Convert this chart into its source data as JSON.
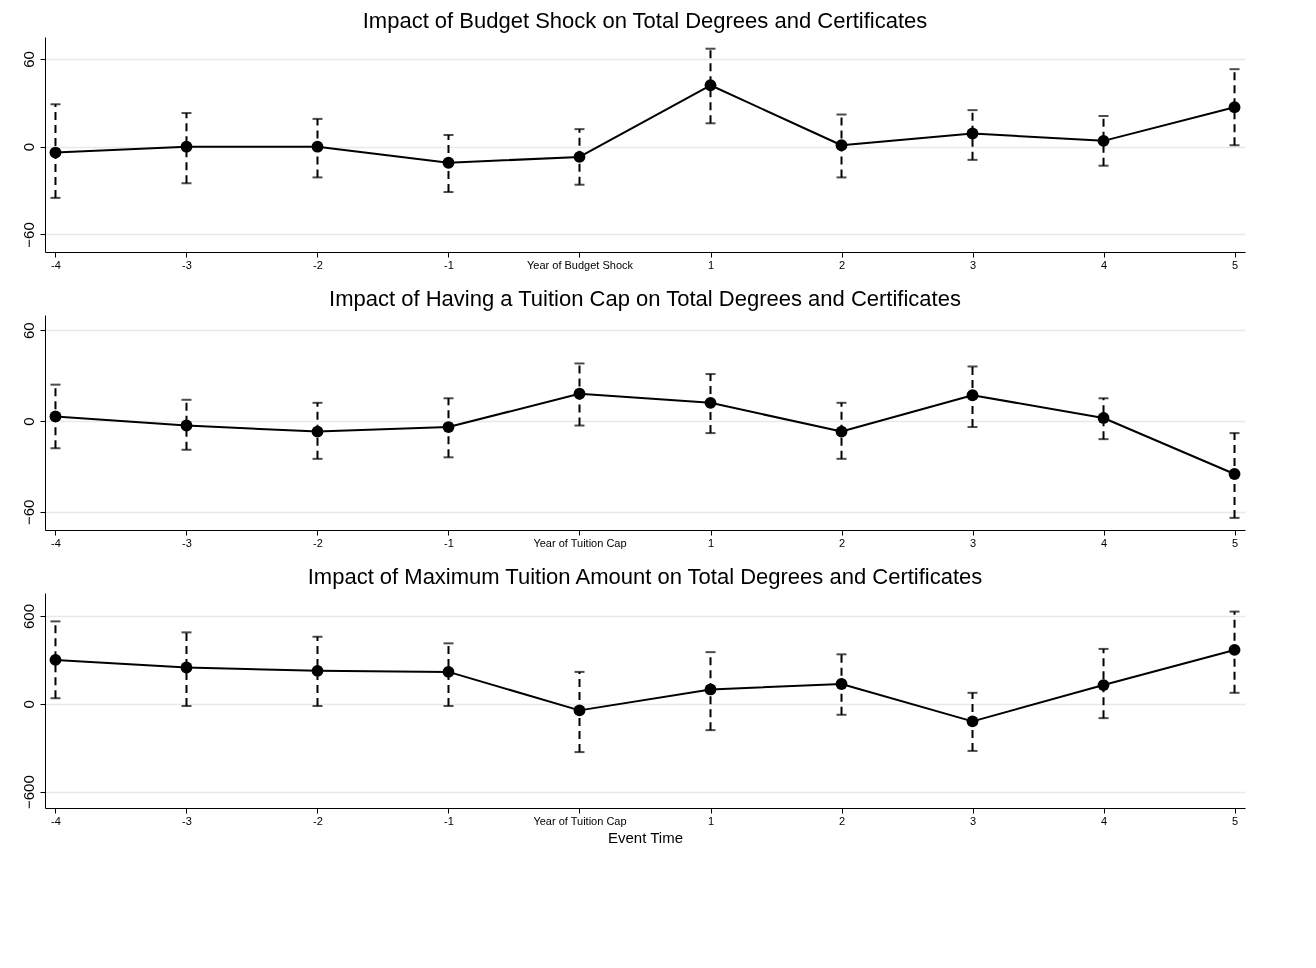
{
  "chart_data": [
    {
      "type": "line",
      "title": "Impact of Budget Shock on Total Degrees and Certificates",
      "categories": [
        "-4",
        "-3",
        "-2",
        "-1",
        "Year of Budget Shock",
        "1",
        "2",
        "3",
        "4",
        "5"
      ],
      "ylim": [
        -72,
        75
      ],
      "yticks": [
        -60,
        0,
        60
      ],
      "grid": "y",
      "marker": "circle",
      "line_style": "solid",
      "series": [
        {
          "color": "#000000",
          "values": [
            -4,
            0,
            0,
            -11,
            -7,
            42,
            1,
            9,
            4,
            27
          ],
          "errors": [
            [
              -35,
              29
            ],
            [
              -25,
              23
            ],
            [
              -21,
              19
            ],
            [
              -31,
              8
            ],
            [
              -26,
              12
            ],
            [
              16,
              67
            ],
            [
              -21,
              22
            ],
            [
              -9,
              25
            ],
            [
              -13,
              21
            ],
            [
              1,
              53
            ]
          ]
        }
      ]
    },
    {
      "type": "line",
      "title": "Impact of Having a Tuition Cap on Total Degrees and Certificates",
      "categories": [
        "-4",
        "-3",
        "-2",
        "-1",
        "Year of Tuition Cap",
        "1",
        "2",
        "3",
        "4",
        "5"
      ],
      "ylim": [
        -72,
        70
      ],
      "yticks": [
        -60,
        0,
        60
      ],
      "grid": "y",
      "marker": "circle",
      "line_style": "solid",
      "series": [
        {
          "color": "#000000",
          "values": [
            3,
            -3,
            -7,
            -4,
            18,
            12,
            -7,
            17,
            2,
            -35
          ],
          "errors": [
            [
              -18,
              24
            ],
            [
              -19,
              14
            ],
            [
              -25,
              12
            ],
            [
              -24,
              15
            ],
            [
              -3,
              38
            ],
            [
              -8,
              31
            ],
            [
              -25,
              12
            ],
            [
              -4,
              36
            ],
            [
              -12,
              15
            ],
            [
              -64,
              -8
            ]
          ]
        }
      ]
    },
    {
      "type": "line",
      "title": "Impact of Maximum Tuition Amount on Total Degrees and Certificates",
      "xlabel": "Event Time",
      "categories": [
        "-4",
        "-3",
        "-2",
        "-1",
        "Year of Tuition Cap",
        "1",
        "2",
        "3",
        "4",
        "5"
      ],
      "ylim": [
        -712,
        757
      ],
      "yticks": [
        -600,
        0,
        600
      ],
      "grid": "y",
      "marker": "circle",
      "line_style": "solid",
      "series": [
        {
          "color": "#000000",
          "values": [
            300,
            248,
            225,
            218,
            -45,
            98,
            135,
            -120,
            128,
            368
          ],
          "errors": [
            [
              38,
              563
            ],
            [
              -15,
              488
            ],
            [
              -15,
              458
            ],
            [
              -15,
              413
            ],
            [
              -330,
              218
            ],
            [
              -180,
              353
            ],
            [
              -75,
              338
            ],
            [
              -322,
              75
            ],
            [
              -98,
              375
            ],
            [
              75,
              630
            ]
          ]
        }
      ]
    }
  ]
}
